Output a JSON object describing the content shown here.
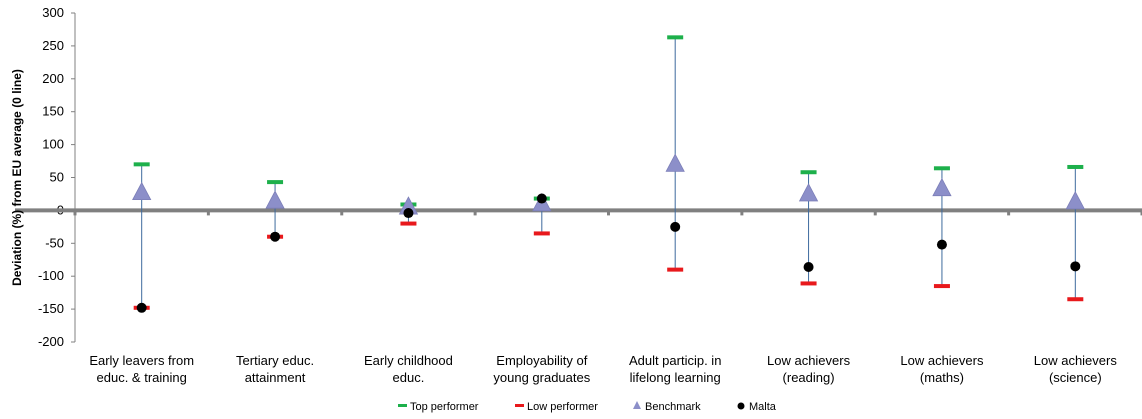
{
  "chart_data": {
    "type": "scatter",
    "title": "",
    "ylabel": "Deviation (%) from EU average (0 line)",
    "xlabel": "",
    "ylim": [
      -200,
      300
    ],
    "yticks": [
      300,
      250,
      200,
      150,
      100,
      50,
      0,
      -50,
      -100,
      -150,
      -200
    ],
    "grid": false,
    "legend_position": "bottom",
    "categories": [
      [
        "Early leavers from",
        "educ. & training"
      ],
      [
        "Tertiary educ.",
        "attainment"
      ],
      [
        "Early childhood",
        "educ."
      ],
      [
        "Employability of",
        "young graduates"
      ],
      [
        "Adult particip. in",
        "lifelong learning"
      ],
      [
        "Low achievers",
        "(reading)"
      ],
      [
        "Low achievers",
        "(maths)"
      ],
      [
        "Low achievers",
        "(science)"
      ]
    ],
    "series": [
      {
        "name": "Top performer",
        "marker": "dash",
        "color": "#1db04b",
        "values": [
          70,
          43,
          9,
          18,
          263,
          58,
          64,
          66
        ]
      },
      {
        "name": "Low performer",
        "marker": "dash",
        "color": "#e8191c",
        "values": [
          -148,
          -40,
          -20,
          -35,
          -90,
          -111,
          -115,
          -135
        ]
      },
      {
        "name": "Benchmark",
        "marker": "triangle",
        "color": "#8c8fc9",
        "values": [
          27,
          14,
          5,
          10,
          70,
          25,
          33,
          13
        ]
      },
      {
        "name": "Malta",
        "marker": "circle",
        "color": "#000000",
        "values": [
          -148,
          -40,
          -4,
          18,
          -25,
          -86,
          -52,
          -85
        ]
      }
    ]
  }
}
